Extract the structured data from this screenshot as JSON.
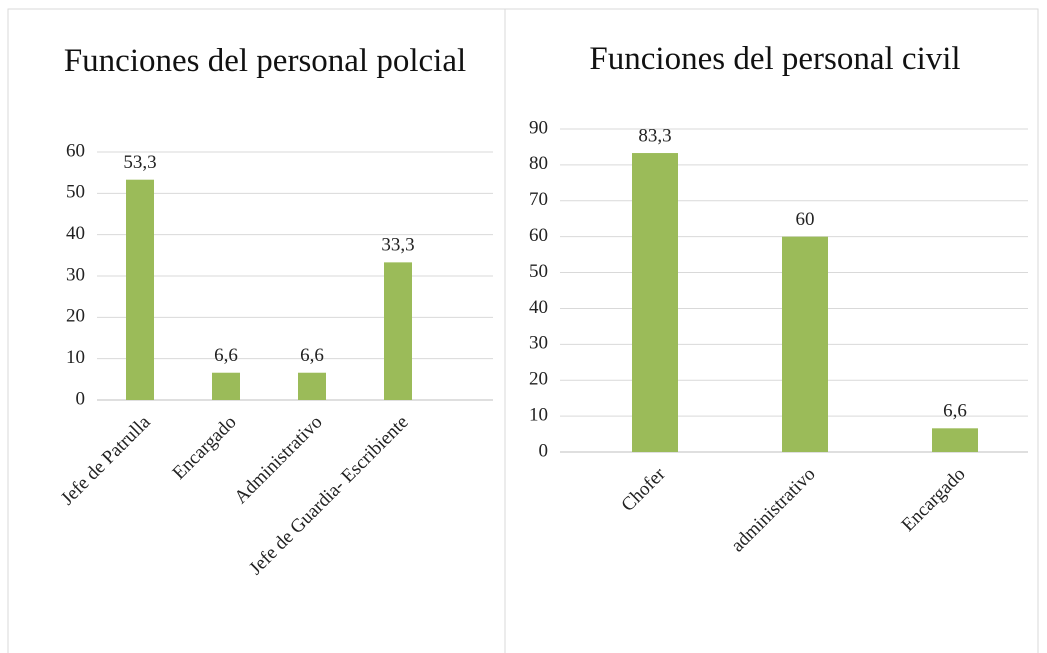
{
  "chart_data": [
    {
      "type": "bar",
      "title": "Funciones del personal polcial",
      "categories": [
        "Jefe de Patrulla",
        "Encargado",
        "Administrativo",
        "Jefe de Guardia- Escribiente"
      ],
      "values": [
        53.3,
        6.6,
        6.6,
        33.3
      ],
      "value_labels": [
        "53,3",
        "6,6",
        "6,6",
        "33,3"
      ],
      "color": "#9bbb59",
      "ylim": [
        0,
        60
      ],
      "yticks": [
        0,
        10,
        20,
        30,
        40,
        50,
        60
      ],
      "grid": true
    },
    {
      "type": "bar",
      "title": "Funciones del personal civil",
      "categories": [
        "Chofer",
        "administrativo",
        "Encargado"
      ],
      "values": [
        83.3,
        60,
        6.6
      ],
      "value_labels": [
        "83,3",
        "60",
        "6,6"
      ],
      "color": "#9bbb59",
      "ylim": [
        0,
        90
      ],
      "yticks": [
        0,
        10,
        20,
        30,
        40,
        50,
        60,
        70,
        80,
        90
      ],
      "grid": true
    }
  ]
}
